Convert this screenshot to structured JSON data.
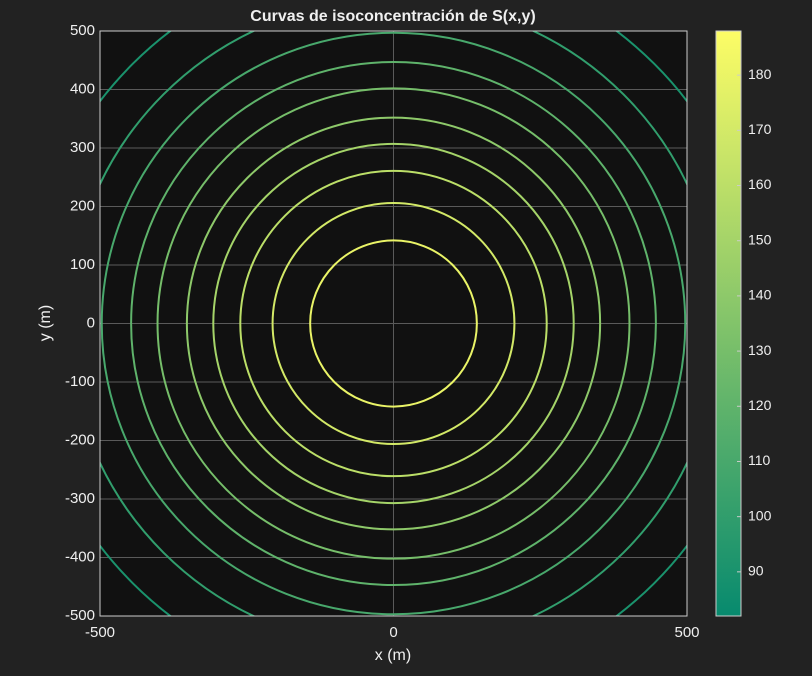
{
  "chart_data": {
    "type": "contour",
    "title": "Curvas de isoconcentración de S(x,y)",
    "x_label": "x (m)",
    "y_label": "y (m)",
    "xlim": [
      -500,
      500
    ],
    "ylim": [
      -500,
      500
    ],
    "xticks": [
      -500,
      0,
      500
    ],
    "yticks": [
      -500,
      -400,
      -300,
      -200,
      -100,
      0,
      100,
      200,
      300,
      400,
      500
    ],
    "grid": true,
    "levels": [
      180,
      170,
      160,
      150,
      140,
      130,
      120,
      110,
      100,
      90
    ],
    "radii": [
      142,
      206,
      261,
      307,
      352,
      402,
      447,
      497,
      554,
      628
    ],
    "clim": [
      82,
      188
    ],
    "colorbar_ticks": [
      90,
      100,
      110,
      120,
      130,
      140,
      150,
      160,
      170,
      180
    ],
    "colormap": [
      "#078a6e",
      "#fdfd66"
    ]
  }
}
